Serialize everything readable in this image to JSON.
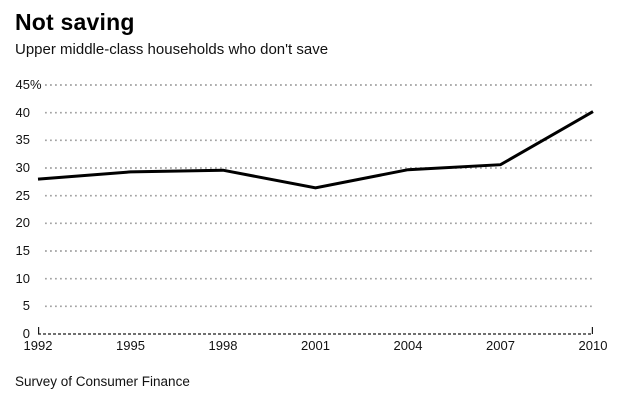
{
  "header": {
    "title": "Not saving",
    "subtitle": "Upper middle-class households who don't save"
  },
  "source": {
    "label": "Survey of Consumer Finance"
  },
  "colors": {
    "line": "#000000",
    "grid": "#a3a3a3",
    "axis": "#1a1a1a",
    "text": "#111111"
  },
  "chart_data": {
    "type": "line",
    "title": "Not saving",
    "subtitle": "Upper middle-class households who don't save",
    "source": "Survey of Consumer Finance",
    "series_name": "Upper middle-class households who don't save (%)",
    "x": [
      1992,
      1995,
      1998,
      2001,
      2004,
      2007,
      2010
    ],
    "values": [
      28.0,
      29.3,
      29.6,
      26.4,
      29.7,
      30.6,
      40.2
    ],
    "xlabel": "",
    "ylabel": "",
    "xlim": [
      1992,
      2010
    ],
    "ylim": [
      0,
      45
    ],
    "yticks": [
      0,
      5,
      10,
      15,
      20,
      25,
      30,
      35,
      40,
      45
    ],
    "ytick_labels": [
      "0",
      "5",
      "10",
      "15",
      "20",
      "25",
      "30",
      "35",
      "40",
      "45%"
    ],
    "xticks": [
      1992,
      1995,
      1998,
      2001,
      2004,
      2007,
      2010
    ],
    "xtick_labels": [
      "1992",
      "1995",
      "1998",
      "2001",
      "2004",
      "2007",
      "2010"
    ],
    "grid": "horizontal-dotted",
    "legend": "none"
  }
}
